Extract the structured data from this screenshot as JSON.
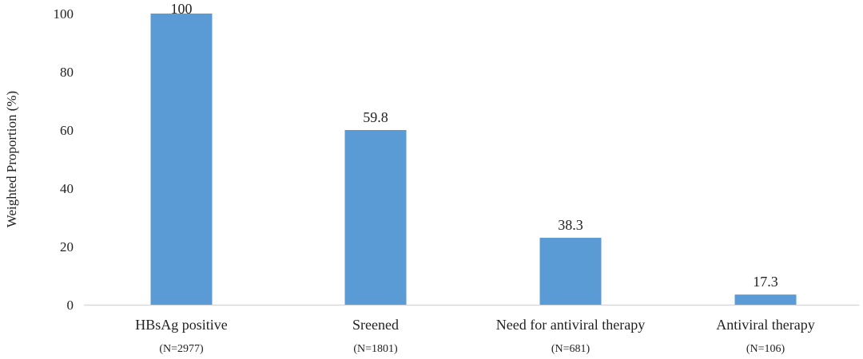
{
  "chart_data": {
    "type": "bar",
    "ylabel": "Weighted Proportion (%)",
    "ylim": [
      0,
      100
    ],
    "yticks": [
      0,
      20,
      40,
      60,
      80,
      100
    ],
    "categories": [
      "HBsAg positive",
      "Sreened",
      "Need for antiviral therapy",
      "Antiviral therapy"
    ],
    "n_labels": [
      "(N=2977)",
      "(N=1801)",
      "(N=681)",
      "(N=106)"
    ],
    "values": [
      100,
      60,
      23,
      3.5
    ],
    "data_labels": [
      "100",
      "59.8",
      "38.3",
      "17.3"
    ],
    "grid": false,
    "legend": "none",
    "colors": {
      "bar": "#5b9bd5",
      "axis": "#d9d9d9"
    }
  }
}
